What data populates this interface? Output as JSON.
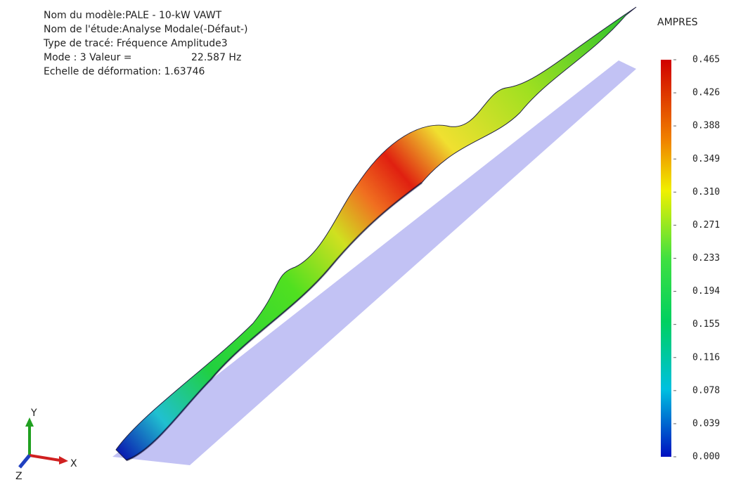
{
  "info": {
    "lines": [
      "Nom du modèle:PALE - 10-kW VAWT",
      "Nom de l'étude:Analyse Modale(-Défaut-)",
      "Type de tracé: Fréquence Amplitude3"
    ],
    "mode_label": "Mode : 3  Valeur =",
    "mode_value": "22.587 Hz",
    "scale": "Echelle de déformation: 1.63746"
  },
  "legend": {
    "title": "AMPRES",
    "ticks": [
      "0.465",
      "0.426",
      "0.388",
      "0.349",
      "0.310",
      "0.271",
      "0.233",
      "0.194",
      "0.155",
      "0.116",
      "0.078",
      "0.039",
      "0.000"
    ]
  },
  "triad": {
    "y": "Y",
    "x": "X",
    "z": "Z"
  }
}
